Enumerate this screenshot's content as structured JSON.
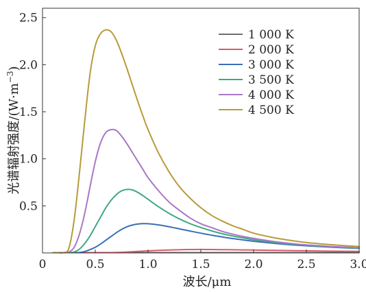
{
  "chart_data": {
    "type": "line",
    "xlabel": "波长/μm",
    "ylabel_main": "光谱辐射强度/(W·m",
    "ylabel_exp": "−3",
    "ylabel_close": ")",
    "xlim": [
      0,
      3.0
    ],
    "ylim": [
      0,
      2.6
    ],
    "x_ticks": [
      0,
      0.5,
      1.0,
      1.5,
      2.0,
      2.5,
      3.0
    ],
    "x_tick_labels": [
      "0",
      "0.5",
      "1.0",
      "1.5",
      "2.0",
      "2.5",
      "3.0"
    ],
    "y_ticks": [
      0.5,
      1.0,
      1.5,
      2.0,
      2.5
    ],
    "y_tick_labels": [
      "0.5",
      "1.0",
      "1.5",
      "2.0",
      "2.5"
    ],
    "grid": false,
    "legend_position": "top-right",
    "x": [
      0.1,
      0.15,
      0.2,
      0.25,
      0.3,
      0.35,
      0.4,
      0.45,
      0.5,
      0.55,
      0.6,
      0.65,
      0.7,
      0.75,
      0.8,
      0.85,
      0.9,
      0.95,
      1.0,
      1.1,
      1.2,
      1.3,
      1.4,
      1.5,
      1.6,
      1.7,
      1.8,
      1.9,
      2.0,
      2.2,
      2.4,
      2.6,
      2.8,
      3.0
    ],
    "series": [
      {
        "name": "1 000 K",
        "color": "#6e6e6e",
        "values": [
          0,
          0,
          0,
          0,
          0,
          0,
          0,
          0,
          0,
          0,
          0,
          0,
          0,
          0,
          0,
          0,
          0,
          0,
          0,
          0,
          0,
          0,
          0,
          0,
          0,
          0,
          0,
          0,
          0,
          0,
          0,
          0,
          0,
          0
        ]
      },
      {
        "name": "2 000 K",
        "color": "#d65a6a",
        "values": [
          0,
          0,
          0,
          0,
          0,
          0,
          0,
          0,
          0,
          0.001,
          0.002,
          0.003,
          0.005,
          0.007,
          0.01,
          0.013,
          0.016,
          0.019,
          0.022,
          0.027,
          0.031,
          0.034,
          0.036,
          0.037,
          0.036,
          0.035,
          0.034,
          0.032,
          0.031,
          0.027,
          0.024,
          0.021,
          0.018,
          0.016
        ]
      },
      {
        "name": "3 000 K",
        "color": "#3a6fb5",
        "values": [
          0,
          0,
          0,
          0,
          0,
          0.005,
          0.015,
          0.035,
          0.06,
          0.095,
          0.135,
          0.175,
          0.215,
          0.25,
          0.278,
          0.296,
          0.307,
          0.311,
          0.31,
          0.298,
          0.278,
          0.255,
          0.232,
          0.21,
          0.189,
          0.17,
          0.153,
          0.138,
          0.124,
          0.101,
          0.083,
          0.069,
          0.057,
          0.048
        ]
      },
      {
        "name": "3 500 K",
        "color": "#3fa882",
        "values": [
          0,
          0,
          0,
          0,
          0.01,
          0.04,
          0.1,
          0.18,
          0.28,
          0.38,
          0.48,
          0.56,
          0.62,
          0.66,
          0.675,
          0.67,
          0.645,
          0.61,
          0.57,
          0.49,
          0.42,
          0.36,
          0.31,
          0.27,
          0.235,
          0.205,
          0.18,
          0.16,
          0.14,
          0.11,
          0.09,
          0.074,
          0.061,
          0.051
        ]
      },
      {
        "name": "4 000 K",
        "color": "#a877c6",
        "values": [
          0,
          0,
          0,
          0.01,
          0.06,
          0.2,
          0.42,
          0.7,
          0.97,
          1.17,
          1.28,
          1.31,
          1.3,
          1.24,
          1.16,
          1.07,
          0.98,
          0.89,
          0.8,
          0.66,
          0.54,
          0.45,
          0.37,
          0.31,
          0.27,
          0.23,
          0.2,
          0.175,
          0.155,
          0.12,
          0.095,
          0.078,
          0.065,
          0.055
        ]
      },
      {
        "name": "4 500 K",
        "color": "#b89a3a",
        "values": [
          0,
          0,
          0,
          0.05,
          0.35,
          0.85,
          1.4,
          1.9,
          2.2,
          2.33,
          2.37,
          2.35,
          2.26,
          2.12,
          1.96,
          1.79,
          1.62,
          1.46,
          1.31,
          1.06,
          0.86,
          0.7,
          0.58,
          0.48,
          0.4,
          0.34,
          0.29,
          0.25,
          0.21,
          0.16,
          0.125,
          0.1,
          0.082,
          0.068
        ]
      }
    ]
  }
}
